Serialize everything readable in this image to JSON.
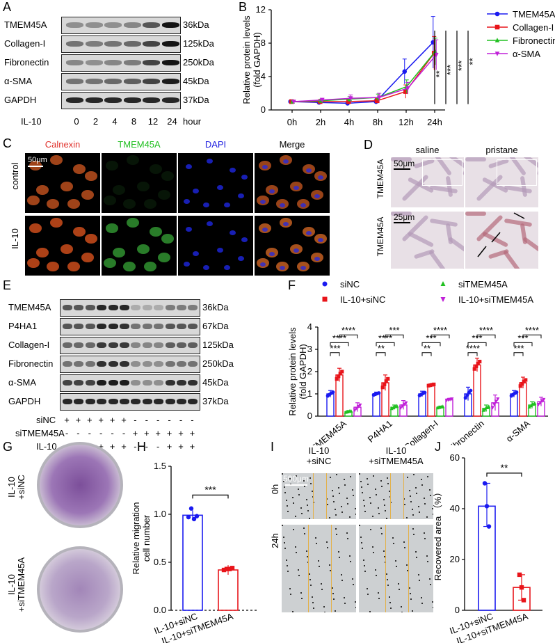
{
  "panels": {
    "A": "A",
    "B": "B",
    "C": "C",
    "D": "D",
    "E": "E",
    "F": "F",
    "G": "G",
    "H": "H",
    "I": "I",
    "J": "J"
  },
  "colors": {
    "blue": "#1a1af0",
    "red": "#e8141a",
    "green": "#20c020",
    "purple": "#c020d8",
    "calnexin": "#e0302a",
    "tmem_green": "#22c022",
    "dapi_blue": "#2020e0"
  },
  "A": {
    "rows": [
      "TMEM45A",
      "Collagen-I",
      "Fibronectin",
      "α-SMA",
      "GAPDH"
    ],
    "sizes": [
      "36kDa",
      "125kDa",
      "250kDa",
      "45kDa",
      "37kDa"
    ],
    "treatment": "IL-10",
    "timepoints": [
      "0",
      "2",
      "4",
      "8",
      "12",
      "24"
    ],
    "unit": "hour"
  },
  "C": {
    "stains": [
      "Calnexin",
      "TMEM45A",
      "DAPI",
      "Merge"
    ],
    "rows": [
      "control",
      "IL-10"
    ],
    "scalebar": "50μm"
  },
  "D": {
    "cols": [
      "saline",
      "pristane"
    ],
    "rows": [
      "TMEM45A",
      "TMEM45A"
    ],
    "scalebar_top": "50μm",
    "scalebar_bottom": "25μm"
  },
  "E": {
    "rows": [
      "TMEM45A",
      "P4HA1",
      "Collagen-I",
      "Fibronectin",
      "α-SMA",
      "GAPDH"
    ],
    "sizes": [
      "36kDa",
      "67kDa",
      "125kDa",
      "250kDa",
      "45kDa",
      "37kDa"
    ],
    "conditions": [
      {
        "label": "siNC",
        "signs": [
          "+",
          "+",
          "+",
          "+",
          "+",
          "+",
          "-",
          "-",
          "-",
          "-",
          "-",
          "-"
        ]
      },
      {
        "label": "siTMEM45A",
        "signs": [
          "-",
          "-",
          "-",
          "-",
          "-",
          "-",
          "+",
          "+",
          "+",
          "+",
          "+",
          "+"
        ]
      },
      {
        "label": "IL-10",
        "signs": [
          "-",
          "-",
          "-",
          "+",
          "+",
          "+",
          "-",
          "-",
          "-",
          "+",
          "+",
          "+"
        ]
      }
    ]
  },
  "G": {
    "labels": [
      "IL-10\n+siNC",
      "IL-10\n+siTMEM45A"
    ],
    "label1a": "IL-10",
    "label1b": "+siNC",
    "label2a": "IL-10",
    "label2b": "+siTMEM45A"
  },
  "I": {
    "col1a": "IL-10",
    "col1b": "+siNC",
    "col2a": "IL-10",
    "col2b": "+siTMEM45A",
    "rows": [
      "0h",
      "24h"
    ],
    "scalebar": "500μm"
  },
  "chart_data": [
    {
      "id": "B",
      "type": "line",
      "x": [
        "0h",
        "2h",
        "4h",
        "8h",
        "12h",
        "24h"
      ],
      "ylabel": "Relative protein levels\n(fold GAPDH)",
      "ylabel1": "Relative protein levels",
      "ylabel2": "(fold GAPDH)",
      "ylim": [
        0,
        12
      ],
      "yticks": [
        "0",
        "4",
        "8",
        "12"
      ],
      "series": [
        {
          "name": "TMEM45A",
          "color": "#1a1af0",
          "marker": "circle",
          "values": [
            1.0,
            0.9,
            0.8,
            1.0,
            4.6,
            8.1
          ],
          "err": [
            0.1,
            0.2,
            0.2,
            0.3,
            1.5,
            3.1
          ]
        },
        {
          "name": "Collagen-I",
          "color": "#e8141a",
          "marker": "square",
          "values": [
            1.0,
            1.0,
            1.0,
            1.1,
            2.2,
            6.8
          ],
          "err": [
            0.1,
            0.2,
            0.3,
            0.3,
            0.8,
            2.0
          ]
        },
        {
          "name": "Fibronectin",
          "color": "#20c020",
          "marker": "triangle",
          "values": [
            1.0,
            1.1,
            1.3,
            1.5,
            2.8,
            7.0
          ],
          "err": [
            0.1,
            0.2,
            0.3,
            0.4,
            0.8,
            1.6
          ]
        },
        {
          "name": "α-SMA",
          "color": "#c020d8",
          "marker": "triangle-down",
          "values": [
            1.0,
            1.2,
            1.4,
            1.5,
            2.6,
            6.6
          ],
          "err": [
            0.1,
            0.2,
            0.4,
            0.5,
            0.7,
            1.8
          ]
        }
      ],
      "significance": [
        "**",
        "***",
        "***",
        "**"
      ]
    },
    {
      "id": "F",
      "type": "bar",
      "categories": [
        "TMEM45A",
        "P4HA1",
        "Collagen-I",
        "Fibronectin",
        "α-SMA"
      ],
      "ylabel1": "Relative protein levels",
      "ylabel2": "(fold GAPDH)",
      "ylim": [
        0,
        4
      ],
      "yticks": [
        "0",
        "1",
        "2",
        "3",
        "4"
      ],
      "series": [
        {
          "name": "siNC",
          "color": "#1a1af0",
          "marker": "circle",
          "values": [
            1.0,
            1.0,
            1.0,
            1.0,
            1.0
          ],
          "err": [
            0.15,
            0.08,
            0.12,
            0.3,
            0.15
          ]
        },
        {
          "name": "IL-10+siNC",
          "color": "#e8141a",
          "marker": "square",
          "values": [
            1.85,
            1.5,
            1.4,
            2.3,
            1.5
          ],
          "err": [
            0.3,
            0.35,
            0.05,
            0.3,
            0.25
          ]
        },
        {
          "name": "siTMEM45A",
          "color": "#20c020",
          "marker": "triangle",
          "values": [
            0.2,
            0.4,
            0.4,
            0.35,
            0.5
          ],
          "err": [
            0.05,
            0.1,
            0.05,
            0.15,
            0.15
          ]
        },
        {
          "name": "IL-10+siTMEM45A",
          "color": "#c020d8",
          "marker": "triangle-down",
          "values": [
            0.4,
            0.5,
            0.75,
            0.6,
            0.65
          ],
          "err": [
            0.2,
            0.2,
            0.05,
            0.35,
            0.2
          ]
        }
      ],
      "significance": [
        {
          "cat": "TMEM45A",
          "top": "****",
          "mid_left": "****",
          "mid_right": "****",
          "bottom": "***"
        },
        {
          "cat": "P4HA1",
          "top": "***",
          "mid_left": "****",
          "mid_right": "***",
          "bottom": "**"
        },
        {
          "cat": "Collagen-I",
          "top": "****",
          "mid_left": "***",
          "mid_right": "****",
          "bottom": "**"
        },
        {
          "cat": "Fibronectin",
          "top": "****",
          "mid_left": "***",
          "mid_right": "****",
          "bottom": "****"
        },
        {
          "cat": "α-SMA",
          "top": "****",
          "mid_left": "***",
          "mid_right": "****",
          "bottom": "***"
        }
      ],
      "sig_labels": {
        "TMEM45A": [
          "***",
          "****",
          "****"
        ],
        "P4HA1": [
          "**",
          "****",
          "***"
        ],
        "Collagen-I": [
          "**",
          "***",
          "****"
        ],
        "Fibronectin": [
          "****",
          "***",
          "****"
        ],
        "α-SMA": [
          "***",
          "***",
          "****"
        ]
      }
    },
    {
      "id": "H",
      "type": "bar",
      "categories": [
        "IL-10+siNC",
        "IL-10+siTMEM45A"
      ],
      "ylabel1": "Relative migration",
      "ylabel2": "cell number",
      "ylim": [
        0,
        1.5
      ],
      "yticks": [
        "0.0",
        "0.5",
        "1.0",
        "1.5"
      ],
      "values": [
        0.99,
        0.42
      ],
      "points": [
        [
          0.97,
          1.06,
          0.95,
          0.98
        ],
        [
          0.42,
          0.43,
          0.43,
          0.44
        ]
      ],
      "colors": [
        "#1a1af0",
        "#e8141a"
      ],
      "significance": "***"
    },
    {
      "id": "J",
      "type": "bar",
      "categories": [
        "IL-10+siNC",
        "IL-10+siTMEM45A"
      ],
      "ylabel": "Recovered area （%）",
      "ylim": [
        0,
        60
      ],
      "yticks": [
        "0",
        "20",
        "40",
        "60"
      ],
      "values": [
        41,
        9
      ],
      "points": [
        [
          50,
          41,
          33
        ],
        [
          14,
          9,
          4
        ]
      ],
      "colors": [
        "#1a1af0",
        "#e8141a"
      ],
      "significance": "**"
    }
  ]
}
